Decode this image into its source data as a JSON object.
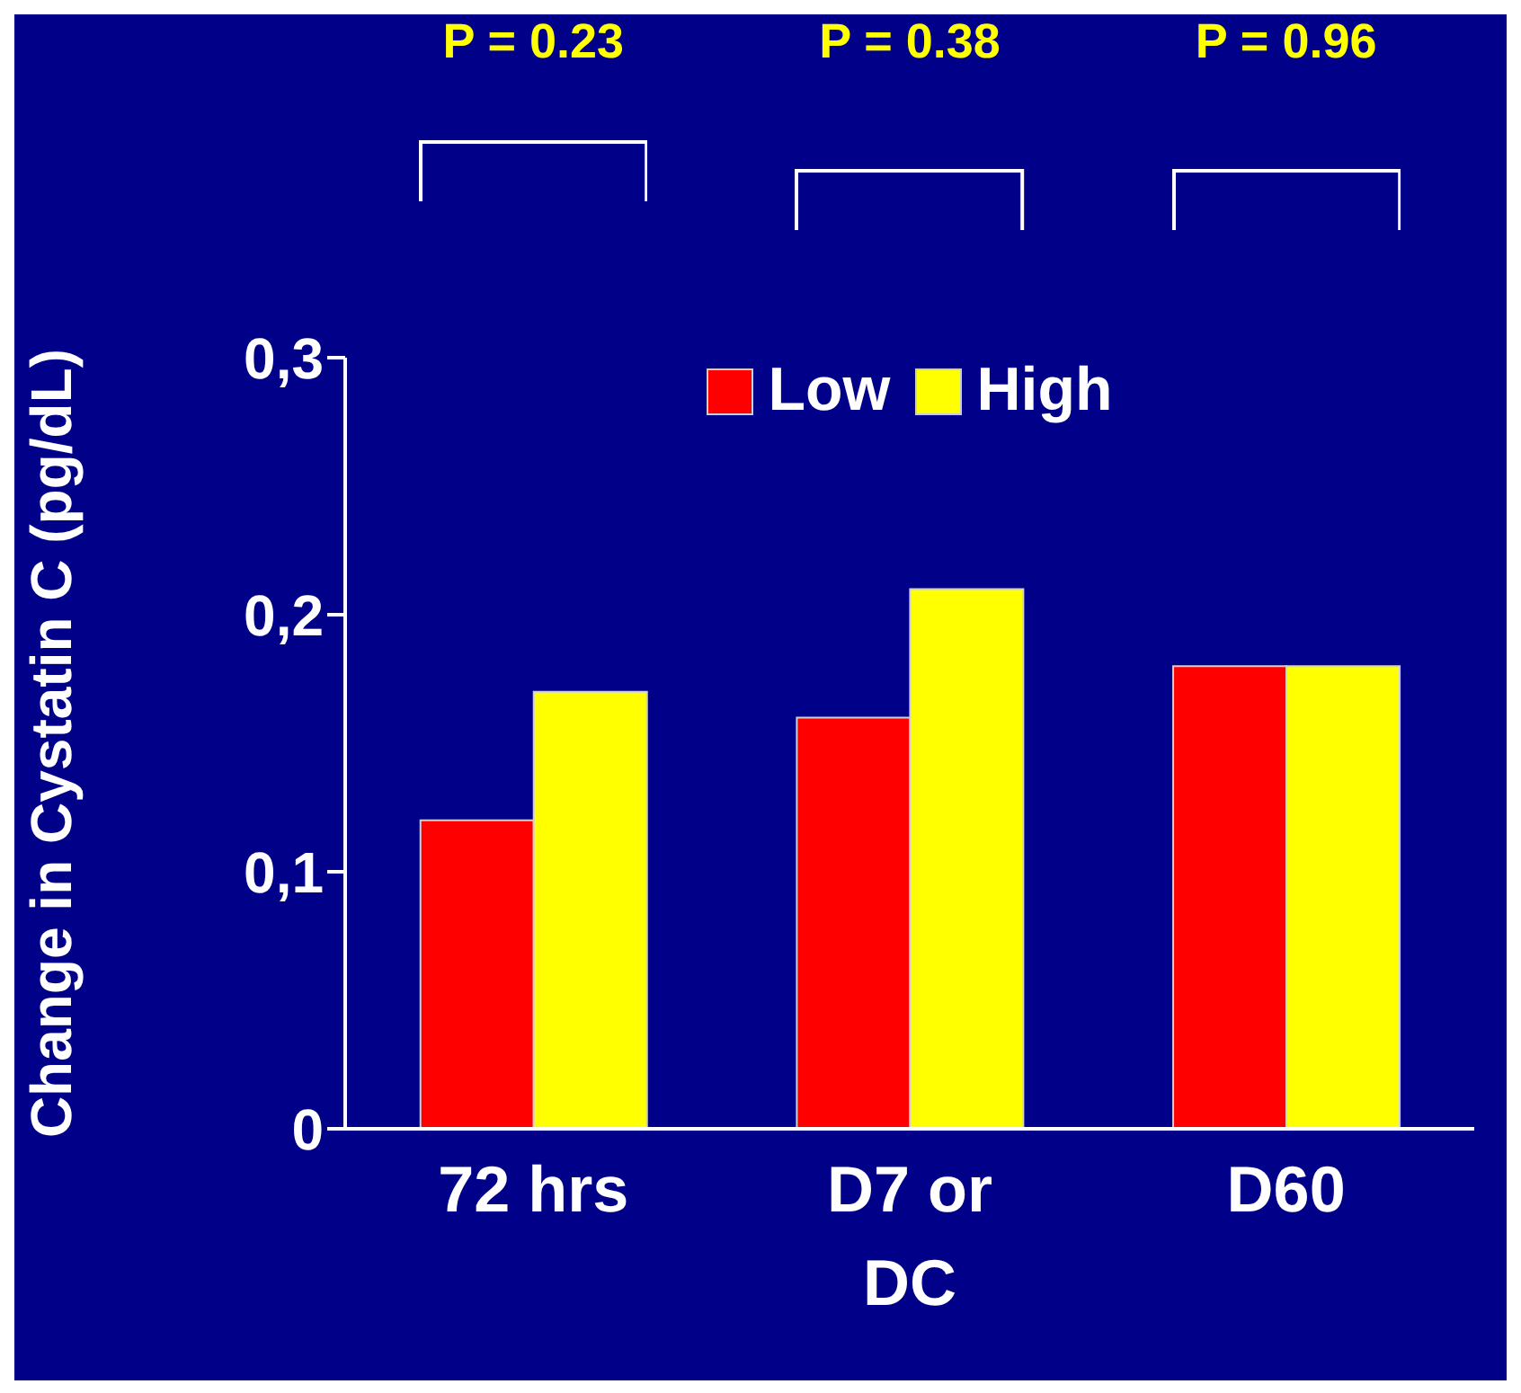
{
  "chart_data": {
    "type": "bar",
    "ylabel": "Change in Cystatin C (pg/dL)",
    "categories": [
      "72 hrs",
      "D7 or DC",
      "D60"
    ],
    "series": [
      {
        "name": "Low",
        "color": "#ff0000",
        "values": [
          0.12,
          0.16,
          0.18
        ]
      },
      {
        "name": "High",
        "color": "#ffff00",
        "values": [
          0.17,
          0.21,
          0.18
        ]
      }
    ],
    "ylim": [
      0,
      0.3
    ],
    "yticks": [
      {
        "value": 0,
        "label": "0"
      },
      {
        "value": 0.1,
        "label": "0,1"
      },
      {
        "value": 0.2,
        "label": "0,2"
      },
      {
        "value": 0.3,
        "label": "0,3"
      }
    ],
    "grid": false,
    "legend": "top",
    "annotations": [
      "P = 0.23",
      "P = 0.38",
      "P = 0.96"
    ]
  }
}
